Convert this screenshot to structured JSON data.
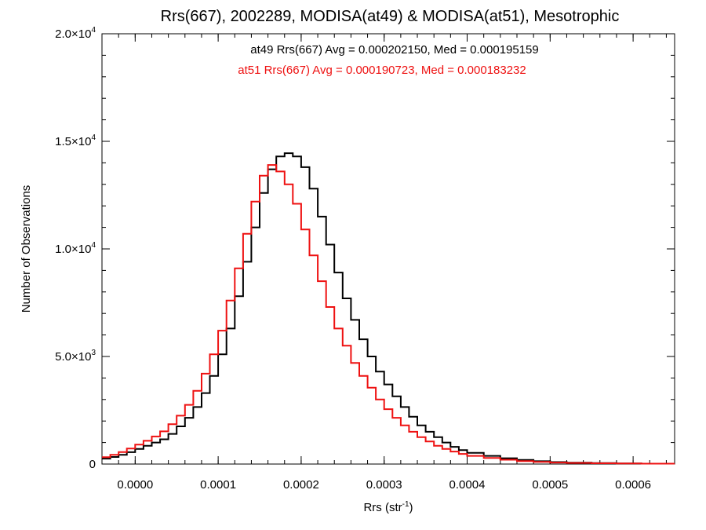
{
  "chart_data": {
    "type": "line",
    "title": "Rrs(667), 2002289, MODISA(at49) & MODISA(at51), Mesotrophic",
    "xlabel_main": "Rrs (str",
    "xlabel_sup": "-1",
    "xlabel_end": ")",
    "ylabel": "Number of Observations",
    "xlim": [
      -4e-05,
      0.00065
    ],
    "ylim": [
      0,
      20000
    ],
    "grid": false,
    "x_ticks": [
      {
        "value": 0.0,
        "label": "0.0000"
      },
      {
        "value": 0.0001,
        "label": "0.0001"
      },
      {
        "value": 0.0002,
        "label": "0.0002"
      },
      {
        "value": 0.0003,
        "label": "0.0003"
      },
      {
        "value": 0.0004,
        "label": "0.0004"
      },
      {
        "value": 0.0005,
        "label": "0.0005"
      },
      {
        "value": 0.0006,
        "label": "0.0006"
      }
    ],
    "y_ticks": [
      {
        "value": 0,
        "mant": "0",
        "exp": ""
      },
      {
        "value": 5000,
        "mant": "5.0×10",
        "exp": "3"
      },
      {
        "value": 10000,
        "mant": "1.0×10",
        "exp": "4"
      },
      {
        "value": 15000,
        "mant": "1.5×10",
        "exp": "4"
      },
      {
        "value": 20000,
        "mant": "2.0×10",
        "exp": "4"
      }
    ],
    "x_minor_step": 2e-05,
    "y_minor_step": 1000,
    "annotations": [
      {
        "text": "at49 Rrs(667) Avg = 0.000202150, Med = 0.000195159",
        "color": "#000000"
      },
      {
        "text": "at51 Rrs(667) Avg = 0.000190723, Med = 0.000183232",
        "color": "#ee1111"
      }
    ],
    "x": [
      -4e-05,
      -3e-05,
      -2e-05,
      -1e-05,
      0.0,
      1e-05,
      2e-05,
      3e-05,
      4e-05,
      5e-05,
      6e-05,
      7e-05,
      8e-05,
      9e-05,
      0.0001,
      0.00011,
      0.00012,
      0.00013,
      0.00014,
      0.00015,
      0.00016,
      0.00017,
      0.00018,
      0.00019,
      0.0002,
      0.00021,
      0.00022,
      0.00023,
      0.00024,
      0.00025,
      0.00026,
      0.00027,
      0.00028,
      0.00029,
      0.0003,
      0.00031,
      0.00032,
      0.00033,
      0.00034,
      0.00035,
      0.00036,
      0.00037,
      0.00038,
      0.00039,
      0.0004,
      0.00042,
      0.00044,
      0.00046,
      0.00048,
      0.0005,
      0.00052,
      0.00055,
      0.00058,
      0.00061,
      0.00065
    ],
    "series": [
      {
        "name": "at49",
        "color": "#000000",
        "values": [
          250,
          330,
          430,
          550,
          700,
          850,
          1000,
          1150,
          1400,
          1750,
          2150,
          2650,
          3300,
          4100,
          5100,
          6300,
          7800,
          9400,
          11000,
          12600,
          13700,
          14300,
          14450,
          14300,
          13800,
          12800,
          11500,
          10200,
          8900,
          7700,
          6700,
          5800,
          5000,
          4300,
          3700,
          3150,
          2650,
          2200,
          1800,
          1500,
          1250,
          1000,
          800,
          650,
          520,
          380,
          270,
          190,
          130,
          90,
          65,
          45,
          30,
          20,
          15
        ]
      },
      {
        "name": "at51",
        "color": "#ee1111",
        "values": [
          320,
          430,
          560,
          720,
          900,
          1080,
          1280,
          1520,
          1850,
          2250,
          2750,
          3400,
          4200,
          5100,
          6200,
          7600,
          9100,
          10700,
          12200,
          13400,
          13900,
          13600,
          13000,
          12100,
          10900,
          9700,
          8500,
          7300,
          6300,
          5500,
          4700,
          4100,
          3550,
          3000,
          2550,
          2150,
          1800,
          1500,
          1250,
          1050,
          850,
          700,
          580,
          470,
          380,
          280,
          200,
          140,
          100,
          70,
          50,
          35,
          25,
          18,
          12
        ]
      }
    ]
  }
}
